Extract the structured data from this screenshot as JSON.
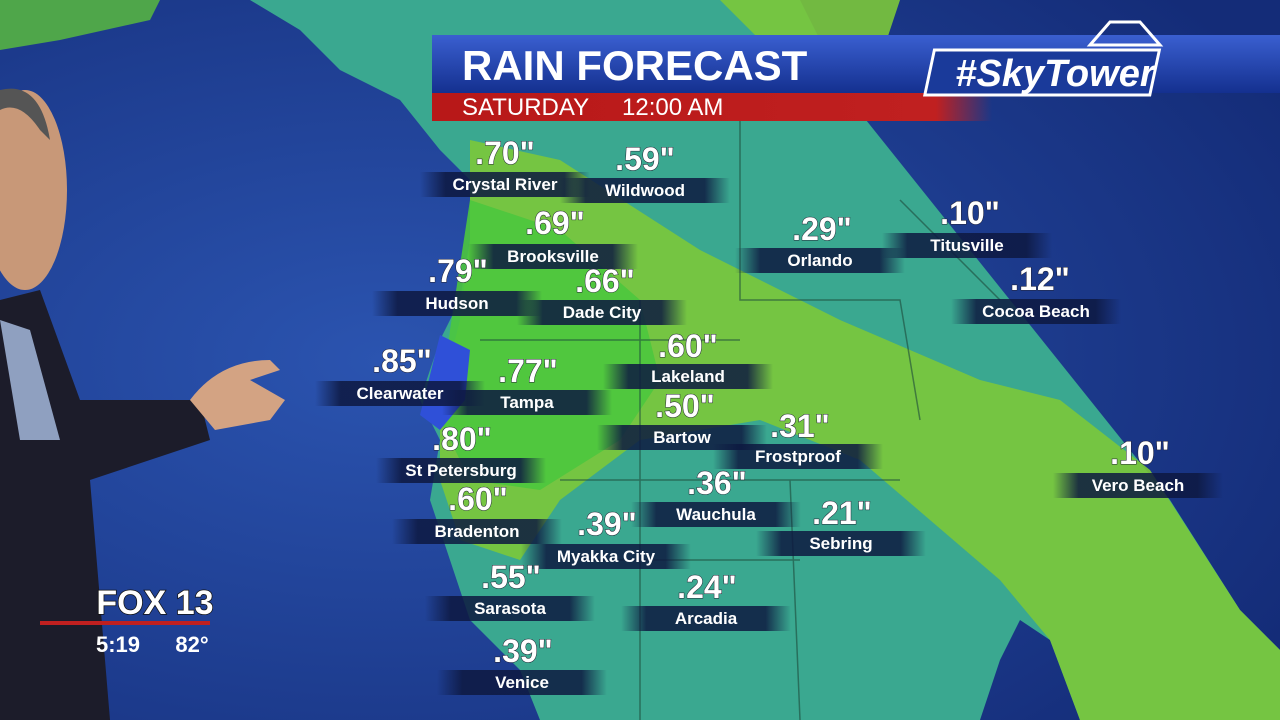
{
  "header": {
    "title": "RAIN FORECAST",
    "day": "SATURDAY",
    "time": "12:00 AM",
    "brand": "#SkyTower"
  },
  "cities": [
    {
      "amount": ".70\"",
      "name": "Crystal River"
    },
    {
      "amount": ".59\"",
      "name": "Wildwood"
    },
    {
      "amount": ".69\"",
      "name": "Brooksville"
    },
    {
      "amount": ".79\"",
      "name": "Hudson"
    },
    {
      "amount": ".66\"",
      "name": "Dade City"
    },
    {
      "amount": ".29\"",
      "name": "Orlando"
    },
    {
      "amount": ".10\"",
      "name": "Titusville"
    },
    {
      "amount": ".12\"",
      "name": "Cocoa Beach"
    },
    {
      "amount": ".85\"",
      "name": "Clearwater"
    },
    {
      "amount": ".77\"",
      "name": "Tampa"
    },
    {
      "amount": ".60\"",
      "name": "Lakeland"
    },
    {
      "amount": ".50\"",
      "name": "Bartow"
    },
    {
      "amount": ".31\"",
      "name": "Frostproof"
    },
    {
      "amount": ".80\"",
      "name": "St Petersburg"
    },
    {
      "amount": ".10\"",
      "name": "Vero Beach"
    },
    {
      "amount": ".36\"",
      "name": "Wauchula"
    },
    {
      "amount": ".60\"",
      "name": "Bradenton"
    },
    {
      "amount": ".39\"",
      "name": "Myakka City"
    },
    {
      "amount": ".21\"",
      "name": "Sebring"
    },
    {
      "amount": ".55\"",
      "name": "Sarasota"
    },
    {
      "amount": ".24\"",
      "name": "Arcadia"
    },
    {
      "amount": ".39\"",
      "name": "Venice"
    }
  ],
  "station": {
    "logo": "FOX 13",
    "clock": "5:19",
    "temperature": "82°"
  }
}
